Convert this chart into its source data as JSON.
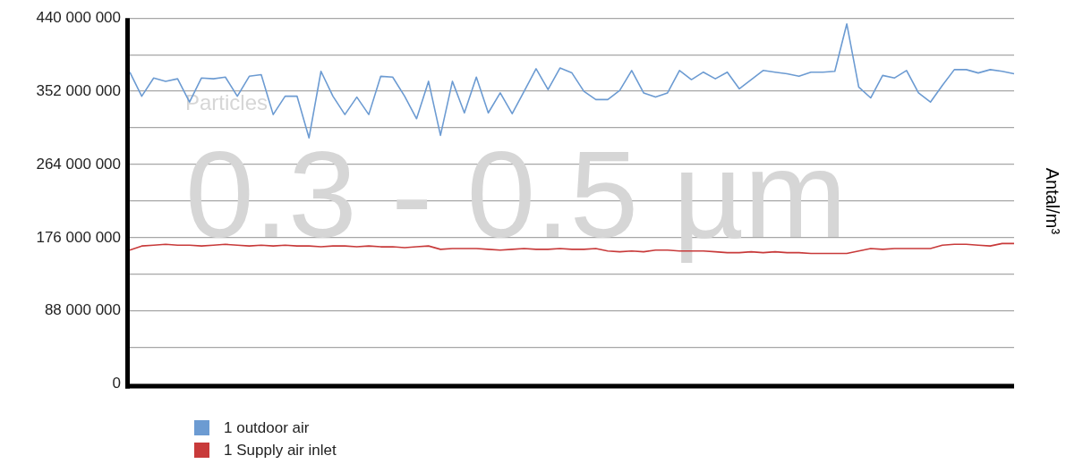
{
  "chart_data": {
    "type": "line",
    "ylabel": "Antal/m³",
    "annotations": [
      "Particles",
      "0.3 - 0.5 µm"
    ],
    "categories": [
      null,
      null,
      null,
      null,
      null,
      null,
      null,
      null,
      null,
      null,
      null,
      null,
      null,
      null,
      null,
      null,
      null,
      null,
      null,
      null,
      null,
      null,
      null,
      null,
      null,
      null,
      null,
      null,
      null,
      null,
      null,
      null,
      null,
      null,
      null,
      null,
      null,
      null,
      null,
      null,
      null,
      null,
      null,
      null,
      null,
      null,
      null,
      null,
      null,
      null,
      null,
      null,
      null,
      null,
      null,
      null,
      null,
      null,
      null,
      null,
      null,
      null,
      null,
      null,
      null,
      null,
      null,
      null,
      null,
      null,
      null,
      null,
      null,
      null,
      null
    ],
    "series": [
      {
        "name": "1 outdoor air",
        "color": "#6c9bd2",
        "values": [
          375000000,
          346000000,
          368000000,
          364000000,
          367000000,
          339000000,
          368000000,
          367000000,
          369000000,
          346000000,
          370000000,
          372000000,
          324000000,
          346000000,
          346000000,
          296000000,
          376000000,
          346000000,
          324000000,
          345000000,
          324000000,
          370000000,
          369000000,
          346000000,
          319000000,
          364000000,
          299000000,
          364000000,
          326000000,
          369000000,
          326000000,
          350000000,
          325000000,
          352000000,
          379000000,
          354000000,
          380000000,
          374000000,
          352000000,
          342000000,
          342000000,
          353000000,
          377000000,
          350000000,
          345000000,
          350000000,
          377000000,
          366000000,
          375000000,
          367000000,
          375000000,
          355000000,
          366000000,
          377000000,
          375000000,
          373000000,
          370000000,
          375000000,
          375000000,
          376000000,
          433000000,
          357000000,
          344000000,
          371000000,
          368000000,
          377000000,
          350000000,
          339000000,
          359000000,
          378000000,
          378000000,
          374000000,
          378000000,
          376000000,
          373000000
        ]
      },
      {
        "name": "1 Supply air inlet",
        "color": "#c83a3a",
        "values": [
          161000000,
          166000000,
          167000000,
          168000000,
          167000000,
          167000000,
          166000000,
          167000000,
          168000000,
          167000000,
          166000000,
          167000000,
          166000000,
          167000000,
          166000000,
          166000000,
          165000000,
          166000000,
          166000000,
          165000000,
          166000000,
          165000000,
          165000000,
          164000000,
          165000000,
          166000000,
          162000000,
          163000000,
          163000000,
          163000000,
          162000000,
          161000000,
          162000000,
          163000000,
          162000000,
          162000000,
          163000000,
          162000000,
          162000000,
          163000000,
          160000000,
          159000000,
          160000000,
          159000000,
          161000000,
          161000000,
          160000000,
          160000000,
          160000000,
          159000000,
          158000000,
          158000000,
          159000000,
          158000000,
          159000000,
          158000000,
          158000000,
          157000000,
          157000000,
          157000000,
          157000000,
          160000000,
          163000000,
          162000000,
          163000000,
          163000000,
          163000000,
          163000000,
          167000000,
          168000000,
          168000000,
          167000000,
          166000000,
          169000000,
          169000000
        ]
      }
    ],
    "ylim": [
      0,
      440000000
    ],
    "yticks": [
      {
        "value": 0,
        "label": "0"
      },
      {
        "value": 44000000,
        "label": null
      },
      {
        "value": 88000000,
        "label": "88 000 000"
      },
      {
        "value": 132000000,
        "label": null
      },
      {
        "value": 176000000,
        "label": "176 000 000"
      },
      {
        "value": 220000000,
        "label": null
      },
      {
        "value": 264000000,
        "label": "264 000 000"
      },
      {
        "value": 308000000,
        "label": null
      },
      {
        "value": 352000000,
        "label": "352 000 000"
      },
      {
        "value": 396000000,
        "label": null
      },
      {
        "value": 440000000,
        "label": "440 000 000"
      }
    ],
    "grid": "y",
    "legend": "bottom left",
    "marker": "none",
    "line_style": "solid"
  }
}
